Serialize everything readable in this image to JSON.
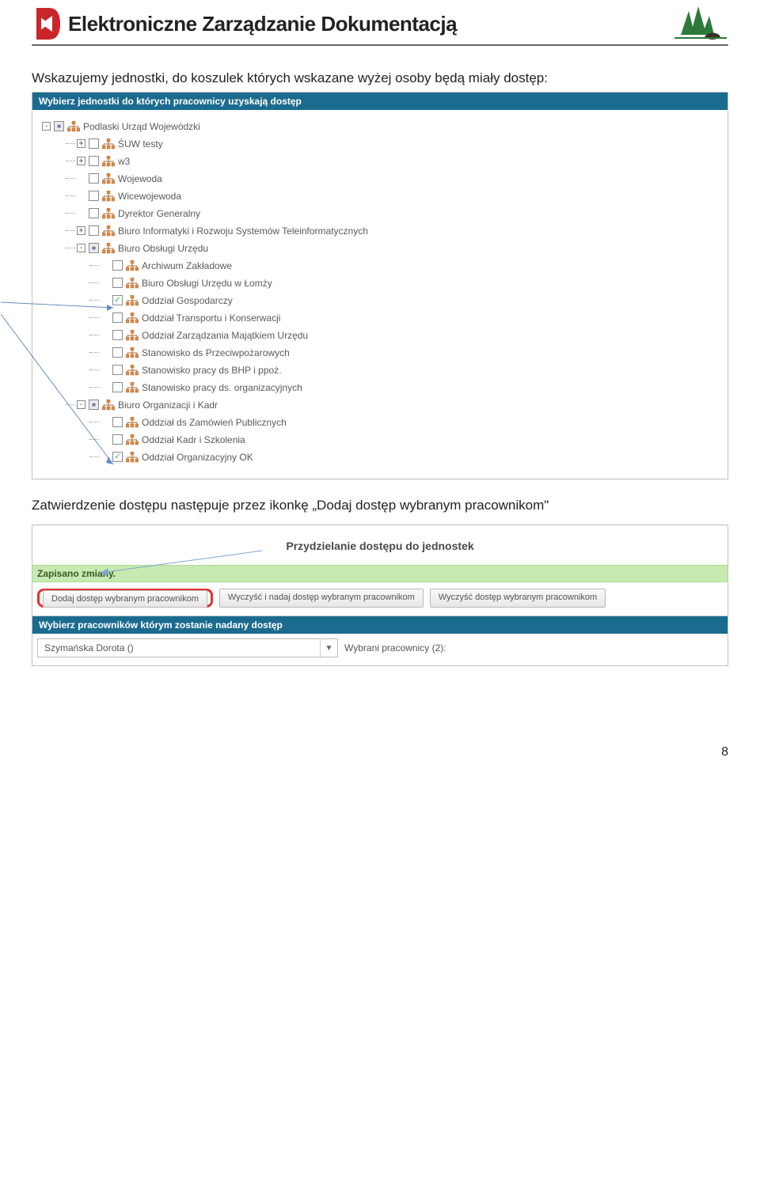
{
  "header": {
    "title": "Elektroniczne Zarządzanie Dokumentacją",
    "logo_left_color": "#c9252b",
    "logo_right_tree_color": "#2e7a3a",
    "logo_right_bison_color": "#3a3028"
  },
  "paragraph1": "Wskazujemy jednostki, do koszulek których wskazane wyżej osoby będą miały dostęp:",
  "paragraph2": "Zatwierdzenie dostępu następuje przez ikonkę „Dodaj dostęp wybranym pracownikom\"",
  "panel_tree": {
    "header": "Wybierz jednostki do których pracownicy uzyskają dostęp",
    "header_bg": "#1b6b8f",
    "nodes": [
      {
        "depth": 0,
        "expander": "-",
        "check": "mixed",
        "label": "Podlaski Urząd Wojewódzki"
      },
      {
        "depth": 1,
        "expander": "+",
        "check": "off",
        "label": "ŚUW testy"
      },
      {
        "depth": 1,
        "expander": "+",
        "check": "off",
        "label": "w3"
      },
      {
        "depth": 1,
        "expander": "",
        "check": "off",
        "label": "Wojewoda"
      },
      {
        "depth": 1,
        "expander": "",
        "check": "off",
        "label": "Wicewojewoda"
      },
      {
        "depth": 1,
        "expander": "",
        "check": "off",
        "label": "Dyrektor Generalny"
      },
      {
        "depth": 1,
        "expander": "+",
        "check": "off",
        "label": "Biuro Informatyki i Rozwoju Systemów Teleinformatycznych"
      },
      {
        "depth": 1,
        "expander": "-",
        "check": "mixed",
        "label": "Biuro Obsługi Urzędu"
      },
      {
        "depth": 2,
        "expander": "",
        "check": "off",
        "label": "Archiwum Zakładowe"
      },
      {
        "depth": 2,
        "expander": "",
        "check": "off",
        "label": "Biuro Obsługi Urzędu w Łomży"
      },
      {
        "depth": 2,
        "expander": "",
        "check": "on",
        "label": "Oddział Gospodarczy"
      },
      {
        "depth": 2,
        "expander": "",
        "check": "off",
        "label": "Oddział Transportu i Konserwacji"
      },
      {
        "depth": 2,
        "expander": "",
        "check": "off",
        "label": "Oddział Zarządzania Majątkiem Urzędu"
      },
      {
        "depth": 2,
        "expander": "",
        "check": "off",
        "label": "Stanowisko ds Przeciwpożarowych"
      },
      {
        "depth": 2,
        "expander": "",
        "check": "off",
        "label": "Stanowisko pracy ds BHP i ppoż."
      },
      {
        "depth": 2,
        "expander": "",
        "check": "off",
        "label": "Stanowisko pracy ds. organizacyjnych"
      },
      {
        "depth": 1,
        "expander": "-",
        "check": "mixed",
        "label": "Biuro Organizacji i Kadr"
      },
      {
        "depth": 2,
        "expander": "",
        "check": "off",
        "label": "Oddział ds Zamówień Publicznych"
      },
      {
        "depth": 2,
        "expander": "",
        "check": "off",
        "label": "Oddział Kadr i Szkolenia"
      },
      {
        "depth": 2,
        "expander": "",
        "check": "on",
        "label": "Oddział Organizacyjny OK"
      }
    ]
  },
  "panel_assign": {
    "title": "Przydzielanie dostępu do jednostek",
    "saved_msg": "Zapisano zmiany.",
    "saved_bg": "#c6eab0",
    "btn1": "Dodaj dostęp wybranym pracownikom",
    "btn2": "Wyczyść i nadaj dostęp wybranym pracownikom",
    "btn3": "Wyczyść dostęp wybranym pracownikom",
    "subheader": "Wybierz pracowników którym zostanie nadany dostęp",
    "select_value": "Szymańska Dorota ()",
    "select_label": "Wybrani pracownicy (2):",
    "highlight_color": "#e53030"
  },
  "page_number": "8"
}
